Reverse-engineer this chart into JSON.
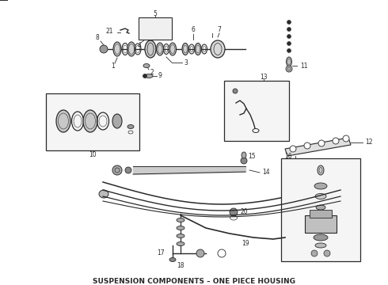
{
  "title": "SUSPENSION COMPONENTS – ONE PIECE HOUSING",
  "title_fontsize": 6.5,
  "title_fontweight": "bold",
  "bg_color": "#ffffff",
  "fg_color": "#2a2a2a",
  "fig_width": 4.9,
  "fig_height": 3.6,
  "dpi": 100
}
